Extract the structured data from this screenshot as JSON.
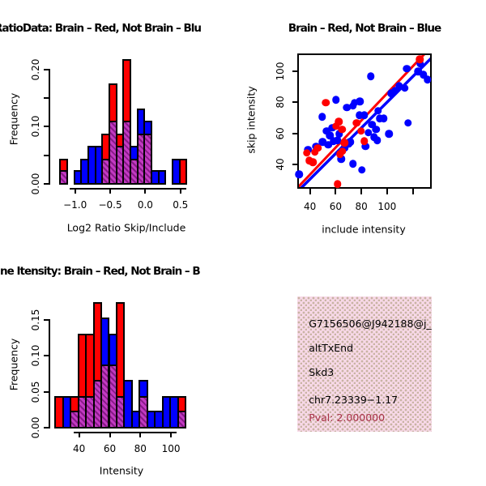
{
  "colors": {
    "red": "#ff0000",
    "blue": "#0000ff",
    "overlap_base": "#c23ac2",
    "overlap_stripe": "#871a87",
    "info_bg": "#f8d9e8",
    "info_dot": "#c9b4a4",
    "pval_text": "#a93248",
    "axis": "#000000"
  },
  "chart_data": [
    {
      "type": "bar",
      "subtype": "overlaid-histogram",
      "title": "RatioData: Brain – Red, Not Brain – Blu",
      "xlabel": "Log2 Ratio Skip/Include",
      "ylabel": "Frequency",
      "x_ticks": [
        -1.0,
        -0.5,
        0.0,
        0.5
      ],
      "x_tick_labels": [
        "−1.0",
        "−0.5",
        "0.0",
        "0.5"
      ],
      "y_ticks": [
        0.0,
        0.05,
        0.1,
        0.15,
        0.2
      ],
      "y_tick_labels": [
        "0.00",
        "",
        "0.10",
        "",
        "0.20"
      ],
      "xlim": [
        -1.2,
        0.6
      ],
      "ylim": [
        0,
        0.217
      ],
      "bin_width": 0.1,
      "legend": {
        "red": "Brain",
        "blue": "Not Brain",
        "overlap": "purple-hatch"
      },
      "bins": [
        {
          "x": -1.2,
          "red": 0.043,
          "blue": 0.022
        },
        {
          "x": -1.0,
          "blue": 0.022
        },
        {
          "x": -0.9,
          "blue": 0.043
        },
        {
          "x": -0.8,
          "blue": 0.065
        },
        {
          "x": -0.7,
          "blue": 0.065
        },
        {
          "x": -0.6,
          "red": 0.087,
          "blue": 0.043
        },
        {
          "x": -0.5,
          "red": 0.174,
          "blue": 0.109
        },
        {
          "x": -0.4,
          "red": 0.087,
          "blue": 0.065
        },
        {
          "x": -0.3,
          "red": 0.217,
          "blue": 0.109
        },
        {
          "x": -0.2,
          "red": 0.043,
          "blue": 0.065
        },
        {
          "x": -0.1,
          "red": 0.087,
          "blue": 0.13
        },
        {
          "x": 0.0,
          "red": 0.087,
          "blue": 0.109
        },
        {
          "x": 0.1,
          "blue": 0.022
        },
        {
          "x": 0.2,
          "blue": 0.022
        },
        {
          "x": 0.4,
          "blue": 0.043
        },
        {
          "x": 0.5,
          "red": 0.043
        }
      ]
    },
    {
      "type": "scatter",
      "title": "Brain – Red, Not Brain – Blue",
      "xlabel": "include intensity",
      "ylabel": "skip intensity",
      "x_ticks": [
        40,
        60,
        80,
        100,
        120
      ],
      "x_tick_labels": [
        "40",
        "60",
        "80",
        "100",
        ""
      ],
      "y_ticks": [
        40,
        60,
        80,
        100
      ],
      "y_tick_labels": [
        "40",
        "60",
        "80",
        "100"
      ],
      "xlim": [
        30.5,
        135.7
      ],
      "ylim": [
        23.7,
        110.8
      ],
      "red_points": [
        [
          38,
          47
        ],
        [
          40,
          42
        ],
        [
          43,
          41
        ],
        [
          44.5,
          47.5
        ],
        [
          46.5,
          50
        ],
        [
          53,
          79
        ],
        [
          61,
          64
        ],
        [
          62,
          27
        ],
        [
          63,
          67
        ],
        [
          64,
          46
        ],
        [
          65.5,
          62
        ],
        [
          66,
          48
        ],
        [
          67.5,
          53.5
        ],
        [
          77,
          66
        ],
        [
          80.5,
          61
        ],
        [
          83,
          54.5
        ],
        [
          126,
          107
        ]
      ],
      "blue_points": [
        [
          32,
          33
        ],
        [
          39,
          49
        ],
        [
          45.5,
          51
        ],
        [
          50,
          70
        ],
        [
          50.5,
          54
        ],
        [
          53.5,
          61
        ],
        [
          55,
          52
        ],
        [
          56,
          58
        ],
        [
          58,
          63
        ],
        [
          59,
          54.5
        ],
        [
          61,
          81
        ],
        [
          62,
          55
        ],
        [
          63.5,
          59
        ],
        [
          65,
          43
        ],
        [
          67.5,
          50
        ],
        [
          69.5,
          76
        ],
        [
          70.5,
          52.5
        ],
        [
          72,
          54
        ],
        [
          74,
          40
        ],
        [
          74,
          77
        ],
        [
          75.5,
          79
        ],
        [
          79,
          71
        ],
        [
          79.5,
          80
        ],
        [
          81,
          36
        ],
        [
          83,
          71
        ],
        [
          84,
          51
        ],
        [
          86,
          60
        ],
        [
          88,
          96
        ],
        [
          89,
          65
        ],
        [
          90.5,
          57
        ],
        [
          92,
          62
        ],
        [
          93,
          55
        ],
        [
          93.5,
          74
        ],
        [
          95,
          69
        ],
        [
          98,
          69
        ],
        [
          102,
          59
        ],
        [
          104,
          85
        ],
        [
          107,
          87
        ],
        [
          110,
          90
        ],
        [
          114.5,
          88.5
        ],
        [
          116,
          101
        ],
        [
          117,
          66
        ],
        [
          125,
          99
        ],
        [
          126.5,
          104
        ],
        [
          129,
          97
        ],
        [
          132,
          94
        ]
      ],
      "lines": [
        {
          "color": "blue",
          "x1": 30.5,
          "y1": 22.0,
          "x2": 135.7,
          "y2": 108.5
        },
        {
          "color": "red",
          "x1": 30.5,
          "y1": 24.5,
          "x2": 130.0,
          "y2": 110.8
        }
      ]
    },
    {
      "type": "bar",
      "subtype": "overlaid-histogram",
      "title": "ne Itensity: Brain – Red, Not Brain – B",
      "xlabel": "Intensity",
      "ylabel": "Frequency",
      "x_ticks": [
        40,
        60,
        80,
        100
      ],
      "x_tick_labels": [
        "40",
        "60",
        "80",
        "100"
      ],
      "y_ticks": [
        0.0,
        0.05,
        0.1,
        0.15
      ],
      "y_tick_labels": [
        "0.00",
        "0.05",
        "0.10",
        "0.15"
      ],
      "xlim": [
        25,
        110
      ],
      "ylim": [
        0,
        0.174
      ],
      "bin_width": 5,
      "legend": {
        "red": "Brain",
        "blue": "Not Brain",
        "overlap": "purple-hatch"
      },
      "bins": [
        {
          "x": 25,
          "red": 0.043
        },
        {
          "x": 30,
          "blue": 0.043
        },
        {
          "x": 35,
          "red": 0.043,
          "blue": 0.022
        },
        {
          "x": 40,
          "red": 0.13,
          "blue": 0.043
        },
        {
          "x": 45,
          "red": 0.13,
          "blue": 0.043
        },
        {
          "x": 50,
          "red": 0.174,
          "blue": 0.065
        },
        {
          "x": 55,
          "red": 0.087,
          "blue": 0.152
        },
        {
          "x": 60,
          "red": 0.087,
          "blue": 0.13
        },
        {
          "x": 65,
          "red": 0.174,
          "blue": 0.043
        },
        {
          "x": 70,
          "blue": 0.065
        },
        {
          "x": 75,
          "blue": 0.022
        },
        {
          "x": 80,
          "red": 0.043,
          "blue": 0.065
        },
        {
          "x": 85,
          "blue": 0.022
        },
        {
          "x": 90,
          "blue": 0.022
        },
        {
          "x": 95,
          "blue": 0.043
        },
        {
          "x": 100,
          "blue": 0.043
        },
        {
          "x": 105,
          "red": 0.043,
          "blue": 0.022
        }
      ]
    }
  ],
  "info_panel": {
    "lines": [
      {
        "text": "G7156506@J942188@j_"
      },
      {
        "text": "altTxEnd"
      },
      {
        "text": "Skd3"
      },
      {
        "text": "chr7.23339−1.17"
      },
      {
        "text": "Pval: 2.000000"
      }
    ]
  }
}
